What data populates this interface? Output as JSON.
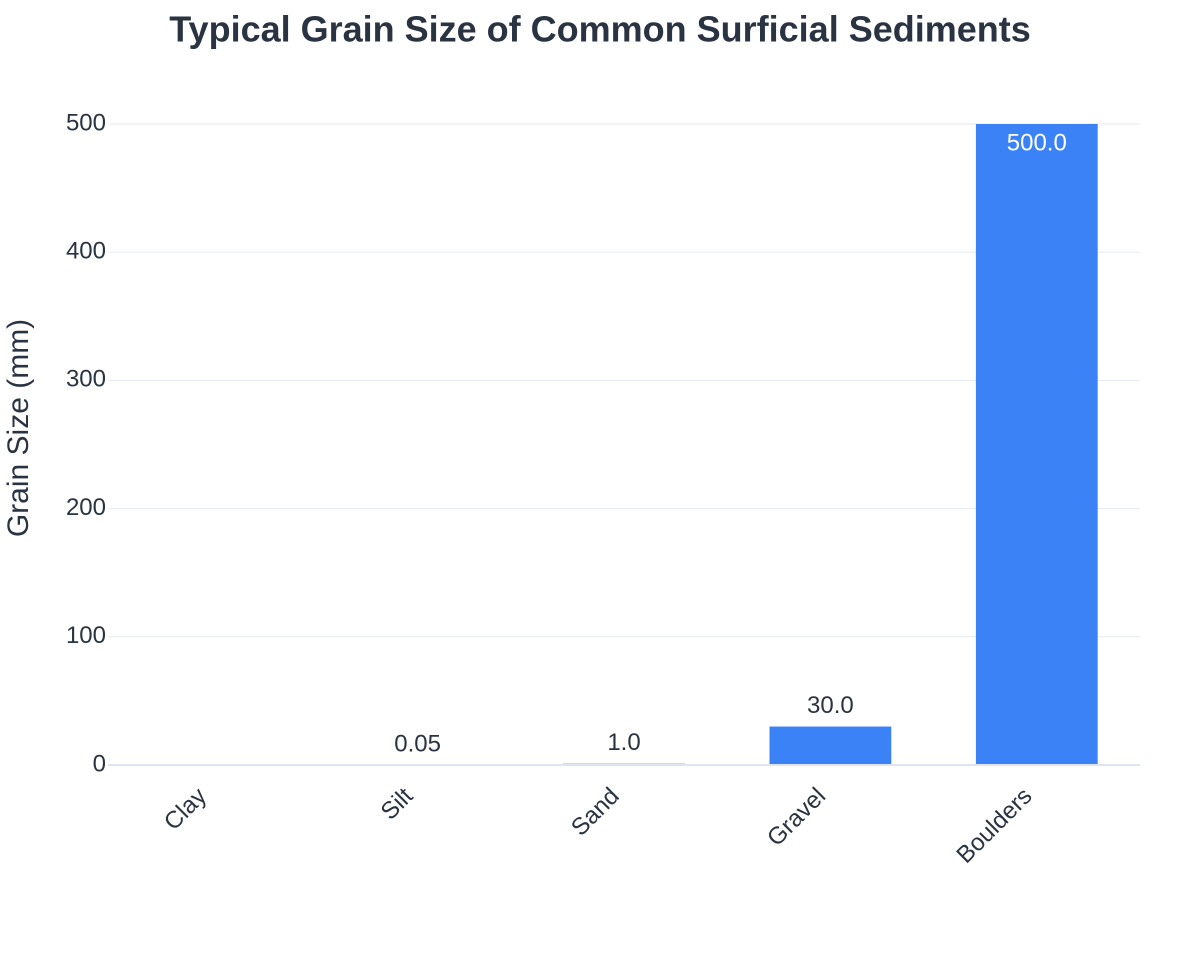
{
  "chart_data": {
    "type": "bar",
    "title": "Typical Grain Size of Common Surficial Sediments",
    "y_label": "Grain Size (mm)",
    "categories": [
      "Clay",
      "Silt",
      "Sand",
      "Gravel",
      "Boulders"
    ],
    "values": [
      0.002,
      0.05,
      1.0,
      30.0,
      500.0
    ],
    "value_labels": [
      null,
      "0.05",
      "1.0",
      "30.0",
      "500.0"
    ],
    "color": "#3b82f6",
    "ylim": [
      0,
      500
    ],
    "yticks": [
      0,
      100,
      200,
      300,
      400,
      500
    ],
    "grid": true
  }
}
